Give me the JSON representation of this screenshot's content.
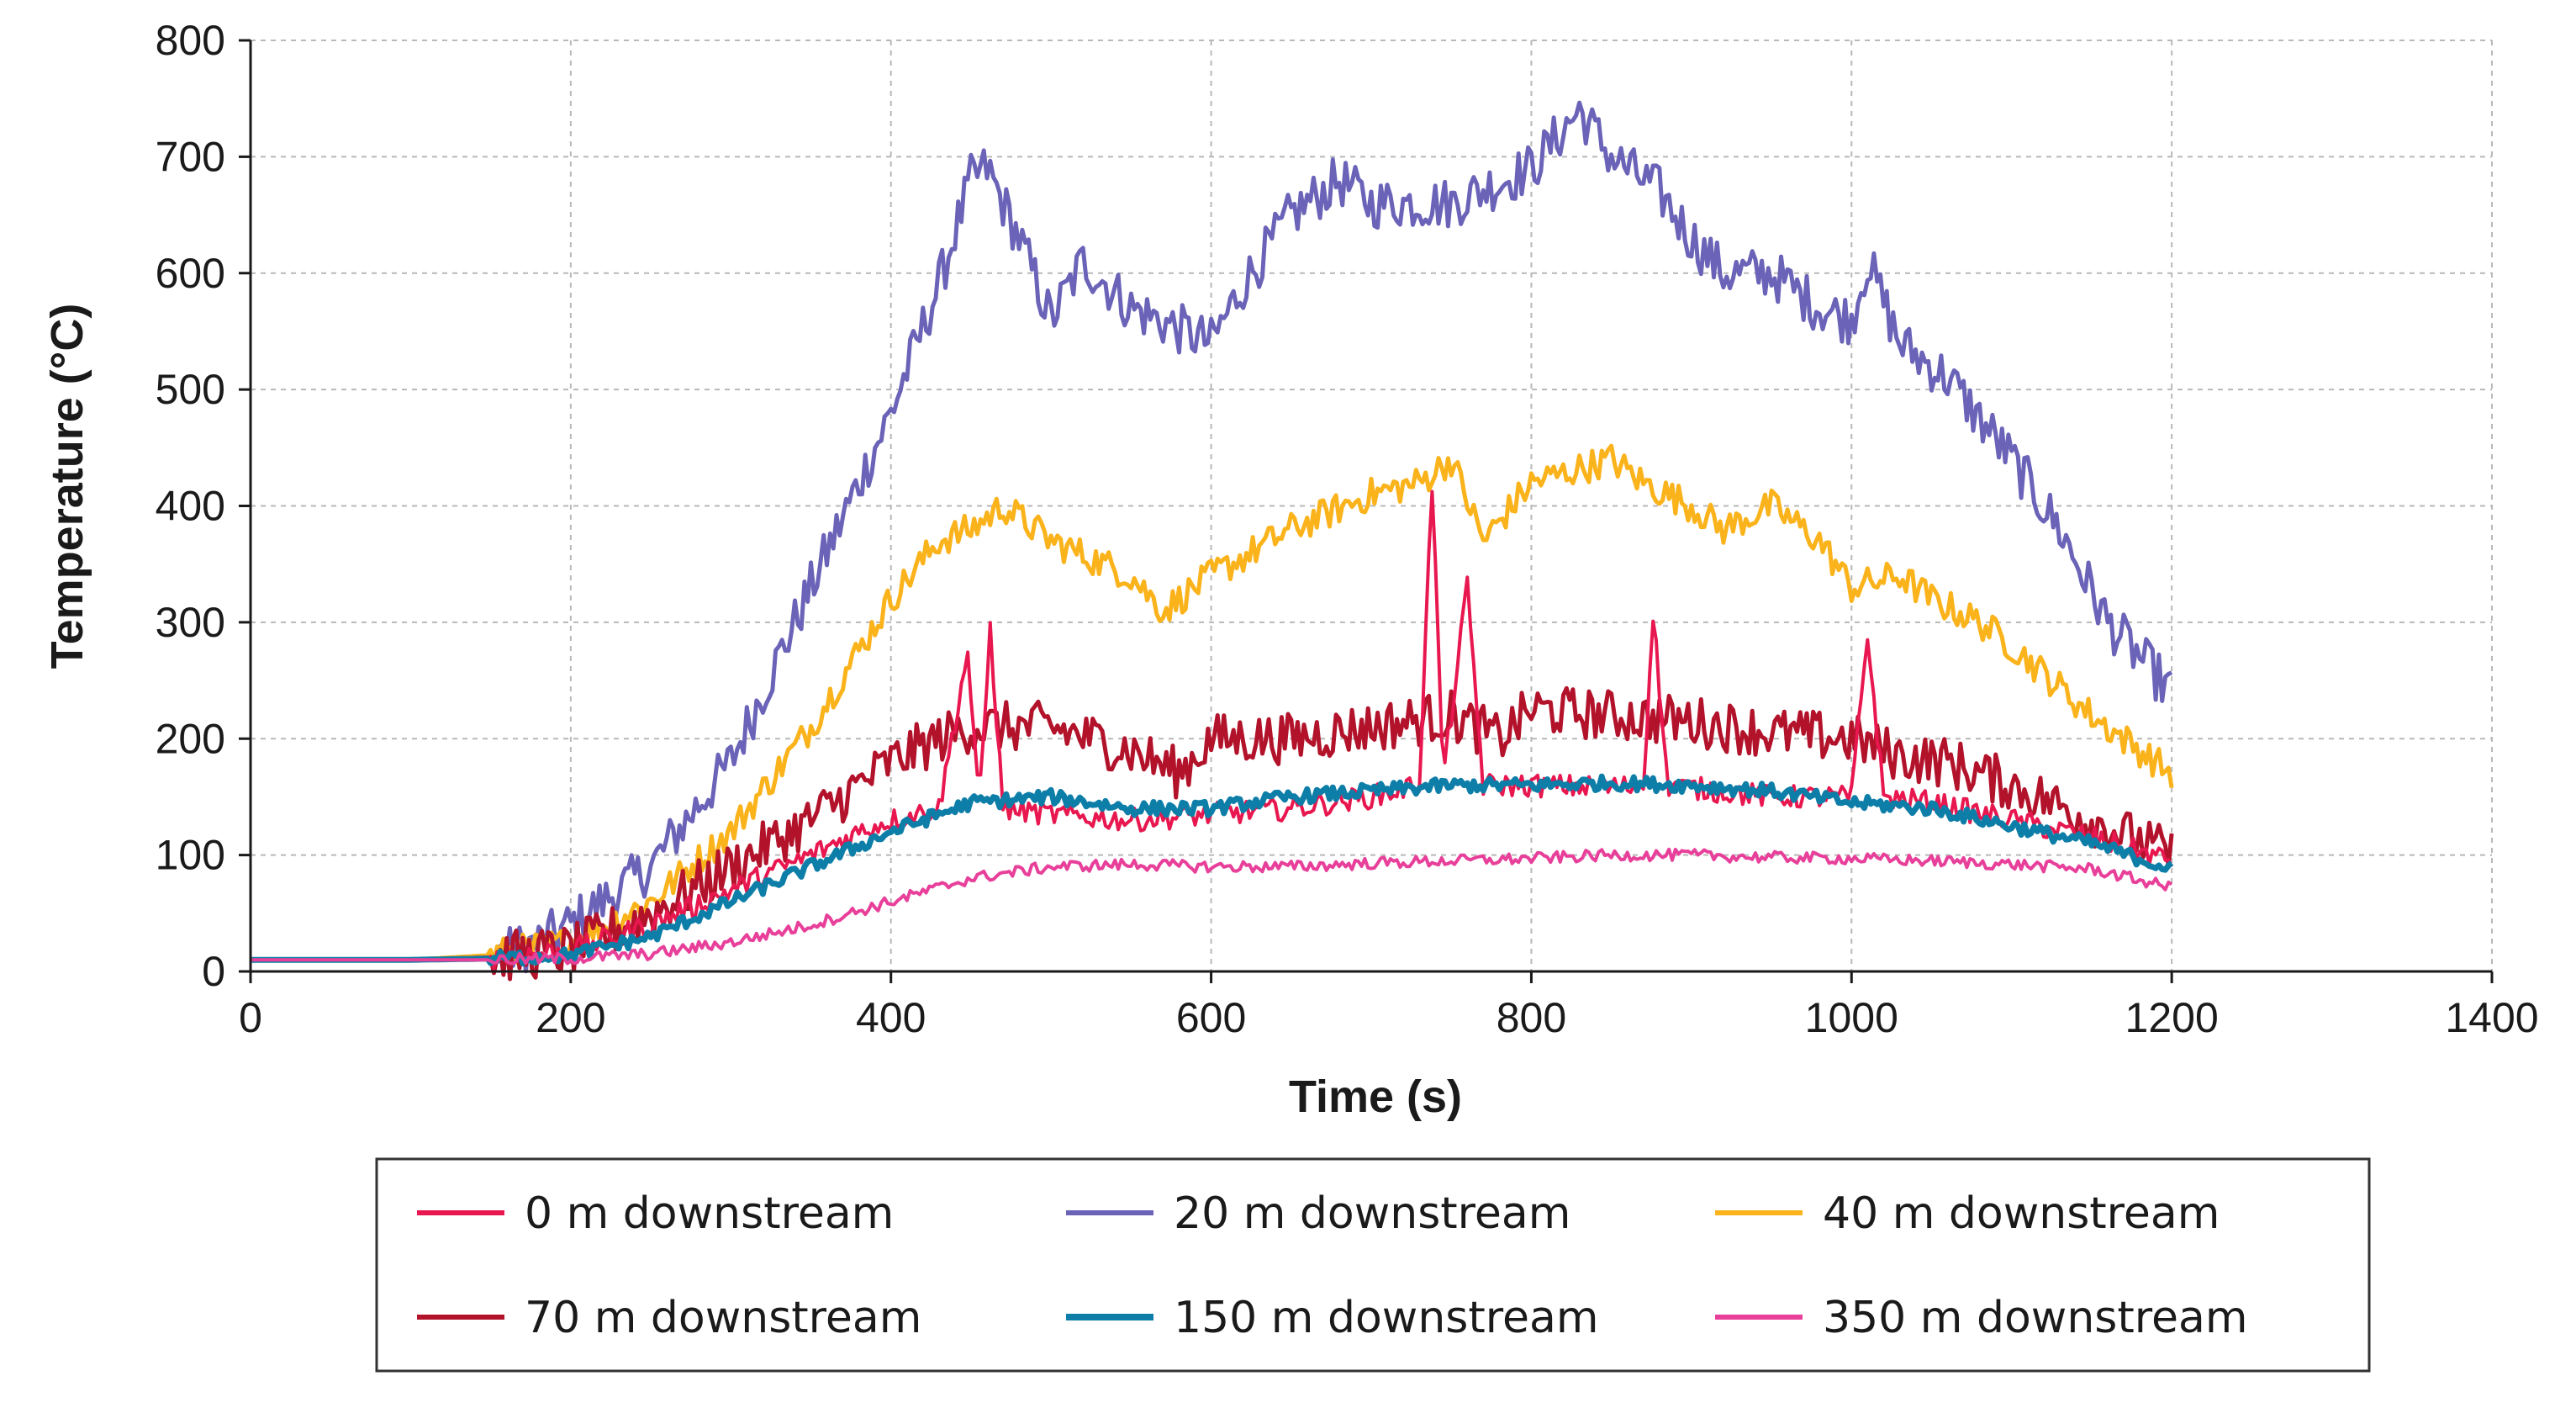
{
  "chart_data": {
    "type": "line",
    "title": "",
    "xlabel": "Time (s)",
    "ylabel": "Temperature (°C)",
    "xlim": [
      0,
      1400
    ],
    "ylim": [
      0,
      800
    ],
    "xticks": [
      0,
      200,
      400,
      600,
      800,
      1000,
      1200,
      1400
    ],
    "yticks": [
      0,
      100,
      200,
      300,
      400,
      500,
      600,
      700,
      800
    ],
    "grid": true,
    "legend_position": "bottom",
    "series": [
      {
        "name": "0 m downstream",
        "color": "#e8174f",
        "points": [
          [
            0,
            10
          ],
          [
            100,
            10
          ],
          [
            150,
            12
          ],
          [
            200,
            18
          ],
          [
            250,
            40
          ],
          [
            300,
            70
          ],
          [
            350,
            100
          ],
          [
            380,
            120
          ],
          [
            400,
            130
          ],
          [
            430,
            140
          ],
          [
            448,
            275
          ],
          [
            455,
            140
          ],
          [
            462,
            295
          ],
          [
            470,
            140
          ],
          [
            500,
            135
          ],
          [
            550,
            130
          ],
          [
            600,
            135
          ],
          [
            650,
            140
          ],
          [
            700,
            150
          ],
          [
            730,
            160
          ],
          [
            738,
            420
          ],
          [
            745,
            165
          ],
          [
            760,
            330
          ],
          [
            770,
            160
          ],
          [
            800,
            160
          ],
          [
            850,
            158
          ],
          [
            870,
            160
          ],
          [
            876,
            310
          ],
          [
            885,
            160
          ],
          [
            950,
            150
          ],
          [
            1000,
            150
          ],
          [
            1010,
            290
          ],
          [
            1020,
            150
          ],
          [
            1050,
            145
          ],
          [
            1100,
            130
          ],
          [
            1150,
            115
          ],
          [
            1200,
            95
          ]
        ]
      },
      {
        "name": "20 m downstream",
        "color": "#6a63b8",
        "points": [
          [
            0,
            10
          ],
          [
            100,
            10
          ],
          [
            150,
            12
          ],
          [
            180,
            25
          ],
          [
            200,
            40
          ],
          [
            250,
            90
          ],
          [
            300,
            180
          ],
          [
            350,
            330
          ],
          [
            380,
            420
          ],
          [
            400,
            480
          ],
          [
            430,
            590
          ],
          [
            450,
            680
          ],
          [
            460,
            690
          ],
          [
            480,
            630
          ],
          [
            500,
            560
          ],
          [
            520,
            610
          ],
          [
            550,
            570
          ],
          [
            600,
            540
          ],
          [
            620,
            590
          ],
          [
            650,
            650
          ],
          [
            680,
            680
          ],
          [
            700,
            660
          ],
          [
            750,
            660
          ],
          [
            800,
            690
          ],
          [
            830,
            740
          ],
          [
            850,
            700
          ],
          [
            880,
            670
          ],
          [
            900,
            630
          ],
          [
            920,
            600
          ],
          [
            950,
            600
          ],
          [
            980,
            570
          ],
          [
            1000,
            560
          ],
          [
            1010,
            610
          ],
          [
            1030,
            540
          ],
          [
            1060,
            510
          ],
          [
            1100,
            440
          ],
          [
            1130,
            380
          ],
          [
            1160,
            300
          ],
          [
            1200,
            240
          ]
        ]
      },
      {
        "name": "40 m downstream",
        "color": "#fbb31c",
        "points": [
          [
            0,
            10
          ],
          [
            100,
            10
          ],
          [
            150,
            14
          ],
          [
            200,
            25
          ],
          [
            250,
            60
          ],
          [
            300,
            120
          ],
          [
            350,
            210
          ],
          [
            400,
            320
          ],
          [
            430,
            370
          ],
          [
            450,
            380
          ],
          [
            470,
            400
          ],
          [
            500,
            370
          ],
          [
            550,
            340
          ],
          [
            570,
            310
          ],
          [
            600,
            340
          ],
          [
            650,
            380
          ],
          [
            700,
            410
          ],
          [
            730,
            420
          ],
          [
            750,
            440
          ],
          [
            770,
            370
          ],
          [
            800,
            420
          ],
          [
            850,
            440
          ],
          [
            870,
            420
          ],
          [
            900,
            400
          ],
          [
            920,
            380
          ],
          [
            950,
            400
          ],
          [
            980,
            370
          ],
          [
            1000,
            330
          ],
          [
            1030,
            340
          ],
          [
            1050,
            320
          ],
          [
            1080,
            300
          ],
          [
            1100,
            280
          ],
          [
            1150,
            220
          ],
          [
            1200,
            170
          ]
        ]
      },
      {
        "name": "70 m downstream",
        "color": "#b3122b",
        "points": [
          [
            0,
            10
          ],
          [
            100,
            10
          ],
          [
            150,
            12
          ],
          [
            200,
            18
          ],
          [
            250,
            50
          ],
          [
            300,
            90
          ],
          [
            350,
            130
          ],
          [
            380,
            160
          ],
          [
            400,
            180
          ],
          [
            430,
            200
          ],
          [
            450,
            210
          ],
          [
            500,
            210
          ],
          [
            550,
            190
          ],
          [
            580,
            170
          ],
          [
            600,
            200
          ],
          [
            650,
            200
          ],
          [
            700,
            210
          ],
          [
            750,
            220
          ],
          [
            780,
            200
          ],
          [
            800,
            225
          ],
          [
            850,
            220
          ],
          [
            900,
            215
          ],
          [
            950,
            205
          ],
          [
            1000,
            200
          ],
          [
            1030,
            185
          ],
          [
            1060,
            180
          ],
          [
            1100,
            160
          ],
          [
            1150,
            130
          ],
          [
            1200,
            100
          ]
        ]
      },
      {
        "name": "150 m downstream",
        "color": "#0d7ea8",
        "points": [
          [
            0,
            10
          ],
          [
            100,
            10
          ],
          [
            150,
            11
          ],
          [
            200,
            14
          ],
          [
            250,
            30
          ],
          [
            300,
            60
          ],
          [
            350,
            90
          ],
          [
            400,
            120
          ],
          [
            450,
            145
          ],
          [
            500,
            150
          ],
          [
            550,
            140
          ],
          [
            600,
            140
          ],
          [
            650,
            150
          ],
          [
            700,
            155
          ],
          [
            750,
            160
          ],
          [
            800,
            160
          ],
          [
            850,
            162
          ],
          [
            900,
            160
          ],
          [
            950,
            155
          ],
          [
            1000,
            145
          ],
          [
            1050,
            140
          ],
          [
            1100,
            125
          ],
          [
            1150,
            110
          ],
          [
            1200,
            88
          ]
        ]
      },
      {
        "name": "350 m downstream",
        "color": "#e8409a",
        "points": [
          [
            0,
            10
          ],
          [
            100,
            10
          ],
          [
            150,
            10
          ],
          [
            200,
            11
          ],
          [
            250,
            15
          ],
          [
            300,
            25
          ],
          [
            350,
            40
          ],
          [
            400,
            60
          ],
          [
            450,
            80
          ],
          [
            500,
            90
          ],
          [
            550,
            92
          ],
          [
            600,
            90
          ],
          [
            650,
            90
          ],
          [
            700,
            93
          ],
          [
            750,
            95
          ],
          [
            800,
            97
          ],
          [
            850,
            100
          ],
          [
            900,
            100
          ],
          [
            950,
            98
          ],
          [
            1000,
            97
          ],
          [
            1050,
            95
          ],
          [
            1100,
            92
          ],
          [
            1150,
            88
          ],
          [
            1200,
            72
          ]
        ]
      }
    ]
  }
}
